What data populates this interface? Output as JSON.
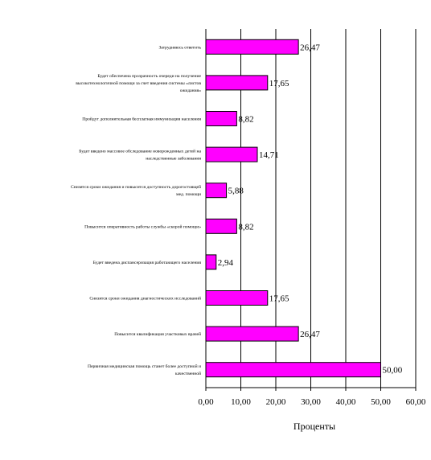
{
  "chart_data": {
    "type": "bar",
    "orientation": "horizontal",
    "categories": [
      "Затрудняюсь ответить",
      "Будет обеспечена прозрачность очереди на получение высокотехнологичной помощи за счет введения системы «листов ожидания»",
      "Пройдут дополнительная бесплатная иммунизация населения",
      "Будет введено массовое обследование новорожденных детей на наследственные заболевания",
      "Снизятся сроки ожидания и повысится доступность дорогостоящей мед. помощи",
      "Повысится оперативность работы службы «скорой помощи»",
      "Будет введена диспансеризация работающего населения",
      "Снизятся сроки ожидания диагностических исследований",
      "Повысится квалификация участковых врачей",
      "Первичная медицинская помощь станет более доступной и качественной"
    ],
    "values": [
      26.47,
      17.65,
      8.82,
      14.71,
      5.88,
      8.82,
      2.94,
      17.65,
      26.47,
      50.0
    ],
    "value_labels": [
      "26,47",
      "17,65",
      "8,82",
      "14,71",
      "5,88",
      "8,82",
      "2,94",
      "17,65",
      "26,47",
      "50,00"
    ],
    "xlabel": "Проценты",
    "xlim": [
      0,
      60
    ],
    "ticks": [
      "0,00",
      "10,00",
      "20,00",
      "30,00",
      "40,00",
      "50,00",
      "60,00"
    ],
    "grid": "vertical",
    "legend": "none",
    "bar_color": "#ff00ff",
    "bar_edge_color": "#000000"
  }
}
